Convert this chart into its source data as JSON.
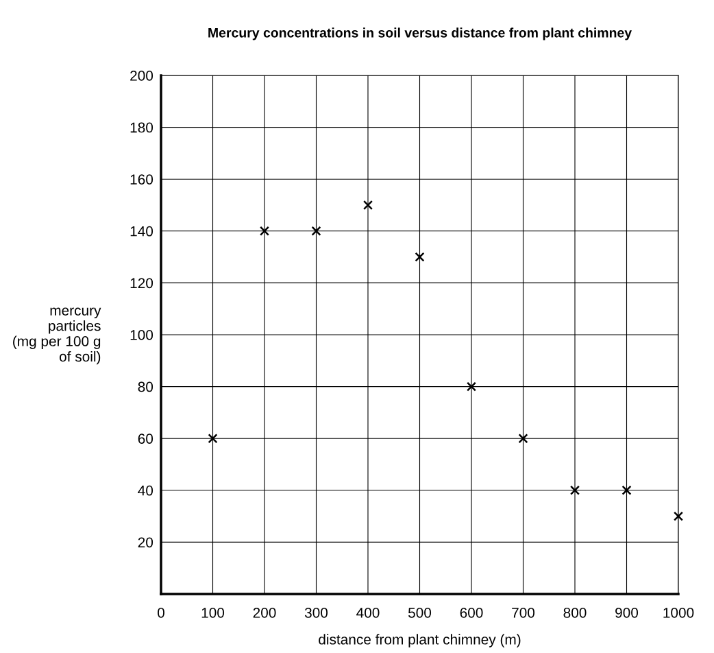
{
  "chart_data": {
    "type": "scatter",
    "title": "Mercury concentrations in soil versus distance from plant chimney",
    "xlabel": "distance from plant chimney (m)",
    "ylabel": "mercury\nparticles\n(mg per 100 g\nof soil)",
    "x": [
      100,
      200,
      300,
      400,
      500,
      600,
      700,
      800,
      900,
      1000
    ],
    "series": [
      {
        "color": "#000000",
        "values": [
          60,
          140,
          140,
          150,
          130,
          80,
          60,
          40,
          40,
          30
        ]
      }
    ],
    "xlim": [
      0,
      1000
    ],
    "ylim": [
      0,
      200
    ],
    "xticks": [
      0,
      100,
      200,
      300,
      400,
      500,
      600,
      700,
      800,
      900,
      1000
    ],
    "yticks": [
      {
        "value": 0,
        "label": null
      },
      20,
      40,
      60,
      80,
      100,
      120,
      140,
      160,
      180,
      200
    ],
    "grid": true,
    "marker": "cross"
  }
}
